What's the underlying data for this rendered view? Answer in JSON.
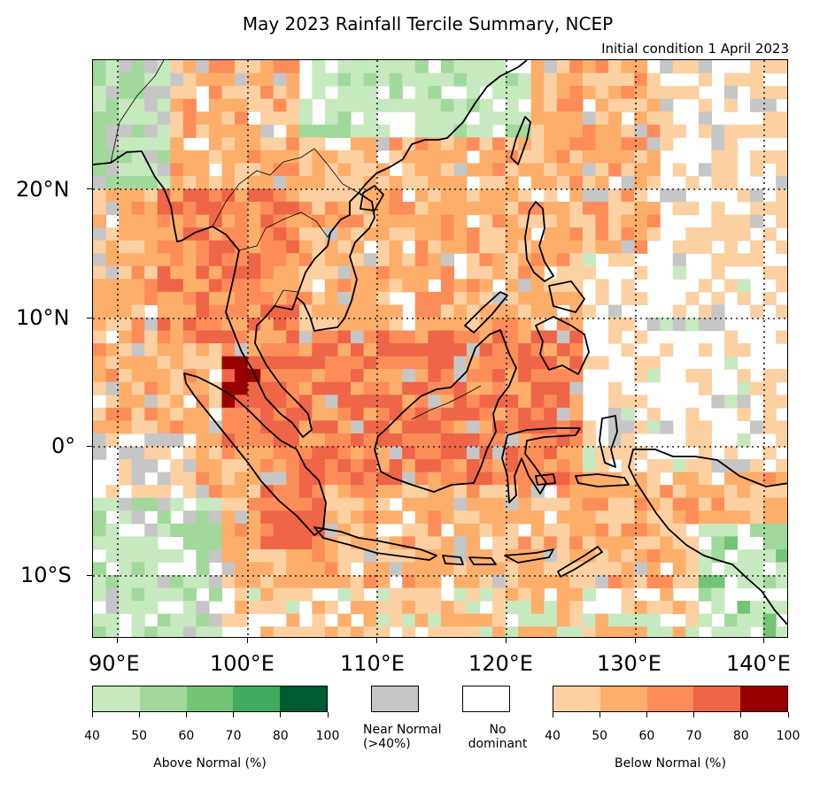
{
  "title": "May 2023 Rainfall Tercile Summary, NCEP",
  "subtitle": "Initial condition 1 April 2023",
  "map": {
    "lat_labels": [
      "20°N",
      "10°N",
      "0°",
      "10°S"
    ],
    "lon_labels": [
      "90°E",
      "100°E",
      "110°E",
      "120°E",
      "130°E",
      "140°E"
    ],
    "categories": {
      "above_normal_colors": [
        "#c7e9c0",
        "#a1d99b",
        "#74c476",
        "#41ab5d",
        "#005a32"
      ],
      "below_normal_colors": [
        "#fdd0a2",
        "#fdae6b",
        "#fc8d59",
        "#ef6548",
        "#990000"
      ],
      "near_normal_color": "#c6c6c6",
      "no_dominant_color": "#ffffff"
    }
  },
  "legend": {
    "above": {
      "ticks": [
        "40",
        "50",
        "60",
        "70",
        "80",
        "100"
      ],
      "caption": "Above Normal (%)"
    },
    "near_normal": {
      "caption_line1": "Near Normal",
      "caption_line2": "(>40%)"
    },
    "no_dominant": {
      "caption_line1": "No",
      "caption_line2": "dominant"
    },
    "below": {
      "ticks": [
        "40",
        "50",
        "60",
        "70",
        "80",
        "100"
      ],
      "caption": "Below Normal (%)"
    }
  }
}
